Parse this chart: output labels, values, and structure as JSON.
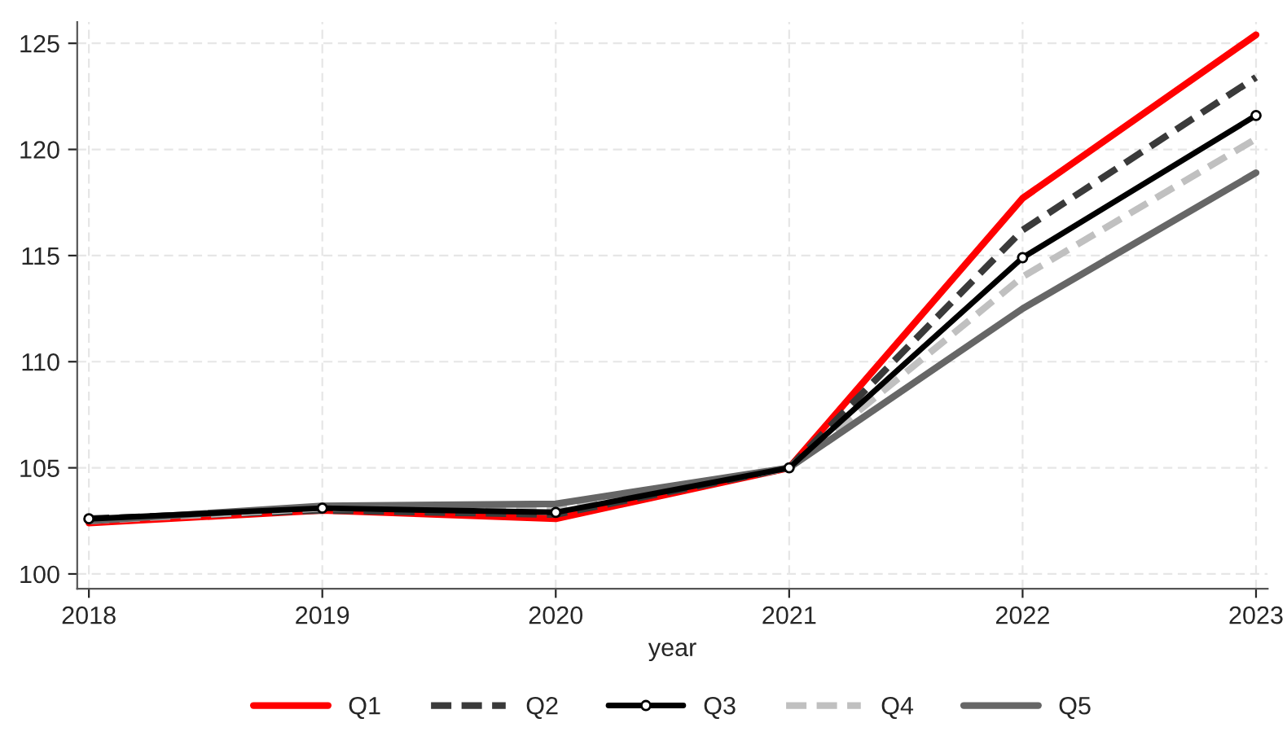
{
  "chart_data": {
    "type": "line",
    "xlabel": "year",
    "x": [
      2018,
      2019,
      2020,
      2021,
      2022,
      2023
    ],
    "xlim": [
      2017.95,
      2023.05
    ],
    "xticks": [
      2018,
      2019,
      2020,
      2021,
      2022,
      2023
    ],
    "ylim": [
      99.3,
      126
    ],
    "yticks": [
      100,
      105,
      110,
      115,
      120,
      125
    ],
    "grid": true,
    "legend": "bottom",
    "series": [
      {
        "name": "Q1",
        "color": "#ff0000",
        "line_style": "solid",
        "marker": "none",
        "values": [
          102.4,
          103.0,
          102.6,
          105.0,
          117.7,
          125.4
        ]
      },
      {
        "name": "Q2",
        "color": "#3a3a3a",
        "line_style": "dashed",
        "marker": "none",
        "values": [
          102.6,
          103.0,
          102.8,
          105.0,
          116.2,
          123.4
        ]
      },
      {
        "name": "Q3",
        "color": "#000000",
        "line_style": "solid",
        "marker": "circle",
        "values": [
          102.6,
          103.1,
          102.9,
          105.0,
          114.9,
          121.6
        ]
      },
      {
        "name": "Q4",
        "color": "#c0c0c0",
        "line_style": "dashed",
        "marker": "none",
        "values": [
          102.5,
          103.1,
          103.1,
          105.0,
          114.0,
          120.5
        ]
      },
      {
        "name": "Q5",
        "color": "#666666",
        "line_style": "solid",
        "marker": "none",
        "values": [
          102.5,
          103.2,
          103.3,
          105.0,
          112.5,
          118.9
        ]
      }
    ]
  }
}
